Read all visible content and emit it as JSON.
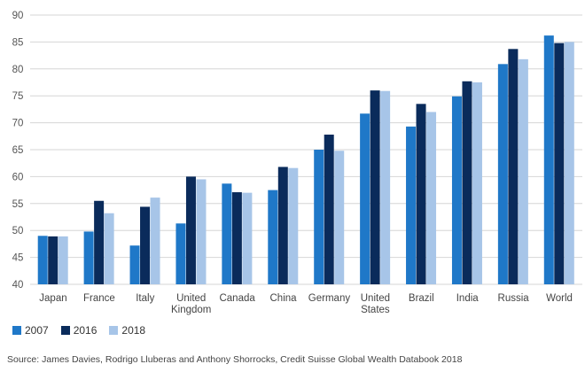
{
  "chart_data": {
    "type": "bar",
    "categories": [
      "Japan",
      "France",
      "Italy",
      "United\nKingdom",
      "Canada",
      "China",
      "Germany",
      "United\nStates",
      "Brazil",
      "India",
      "Russia",
      "World"
    ],
    "series": [
      {
        "name": "2007",
        "color": "#1f78c8",
        "values": [
          49.0,
          49.8,
          47.2,
          51.3,
          58.7,
          57.5,
          65.0,
          71.7,
          69.3,
          74.9,
          80.9,
          86.2
        ]
      },
      {
        "name": "2016",
        "color": "#0a2b5b",
        "values": [
          48.9,
          55.5,
          54.4,
          60.0,
          57.1,
          61.8,
          67.8,
          76.0,
          73.5,
          77.7,
          83.7,
          84.8
        ]
      },
      {
        "name": "2018",
        "color": "#a7c5e8",
        "values": [
          48.9,
          53.2,
          56.1,
          59.5,
          57.0,
          61.6,
          64.8,
          75.9,
          72.0,
          77.5,
          81.8,
          85.0
        ]
      }
    ],
    "ylim": [
      40,
      90
    ],
    "yticks": [
      40,
      45,
      50,
      55,
      60,
      65,
      70,
      75,
      80,
      85,
      90
    ],
    "grid": true,
    "legend_position": "bottom-left",
    "source": "Source: James Davies, Rodrigo Lluberas and Anthony Shorrocks, Credit Suisse Global Wealth Databook 2018"
  }
}
